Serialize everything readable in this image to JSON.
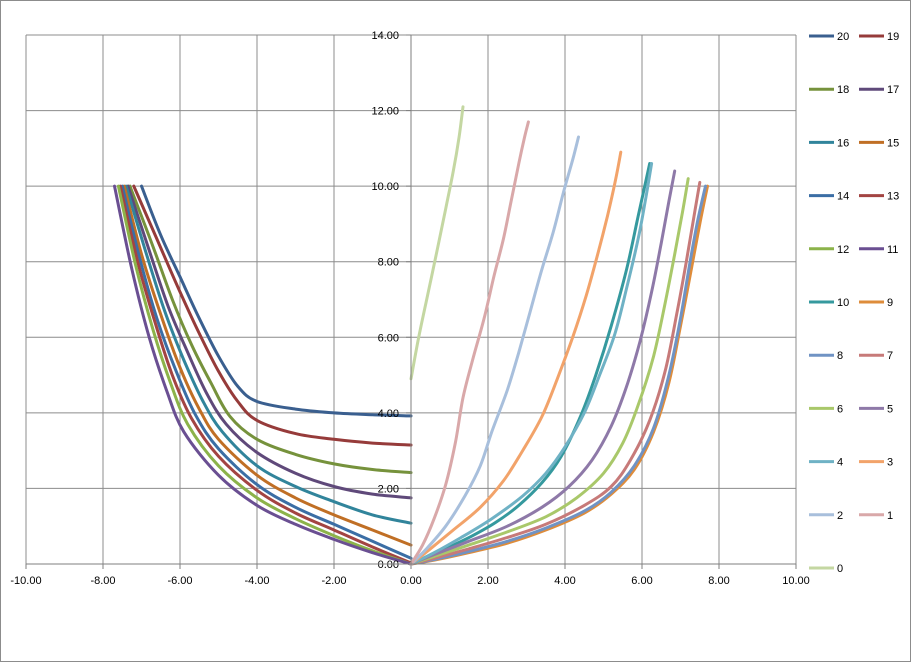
{
  "chart_data": {
    "type": "line",
    "title": "",
    "xlabel": "",
    "ylabel": "",
    "xlim": [
      -10,
      10
    ],
    "ylim": [
      0,
      14
    ],
    "x_ticks": [
      "-10.00",
      "-8.00",
      "-6.00",
      "-4.00",
      "-2.00",
      "0.00",
      "2.00",
      "4.00",
      "6.00",
      "8.00",
      "10.00"
    ],
    "y_ticks": [
      "0.00",
      "2.00",
      "4.00",
      "6.00",
      "8.00",
      "10.00",
      "12.00",
      "14.00"
    ],
    "grid": true,
    "legend_position": "right",
    "series": [
      {
        "name": "20",
        "color": "#3a5f8f",
        "points": [
          [
            -7.0,
            10.0
          ],
          [
            -6.5,
            8.7
          ],
          [
            -6.0,
            7.6
          ],
          [
            -5.5,
            6.5
          ],
          [
            -5.0,
            5.5
          ],
          [
            -4.5,
            4.7
          ],
          [
            -4.0,
            4.3
          ],
          [
            -3.0,
            4.1
          ],
          [
            -2.0,
            4.0
          ],
          [
            -1.0,
            3.95
          ],
          [
            0.0,
            3.92
          ]
        ]
      },
      {
        "name": "19",
        "color": "#963b3a",
        "points": [
          [
            -7.2,
            10.0
          ],
          [
            -6.6,
            8.6
          ],
          [
            -6.0,
            7.2
          ],
          [
            -5.5,
            6.1
          ],
          [
            -5.0,
            5.1
          ],
          [
            -4.5,
            4.3
          ],
          [
            -4.0,
            3.8
          ],
          [
            -3.0,
            3.45
          ],
          [
            -2.0,
            3.3
          ],
          [
            -1.0,
            3.2
          ],
          [
            0.0,
            3.15
          ]
        ]
      },
      {
        "name": "18",
        "color": "#76923c",
        "points": [
          [
            -7.3,
            10.0
          ],
          [
            -6.7,
            8.4
          ],
          [
            -6.2,
            7.0
          ],
          [
            -5.7,
            5.8
          ],
          [
            -5.2,
            4.8
          ],
          [
            -4.7,
            3.9
          ],
          [
            -4.0,
            3.3
          ],
          [
            -3.0,
            2.9
          ],
          [
            -2.0,
            2.65
          ],
          [
            -1.0,
            2.5
          ],
          [
            0.0,
            2.42
          ]
        ]
      },
      {
        "name": "17",
        "color": "#5f497a",
        "points": [
          [
            -7.35,
            10.0
          ],
          [
            -6.8,
            8.3
          ],
          [
            -6.3,
            6.8
          ],
          [
            -5.8,
            5.6
          ],
          [
            -5.3,
            4.5
          ],
          [
            -4.8,
            3.7
          ],
          [
            -4.0,
            2.95
          ],
          [
            -3.0,
            2.4
          ],
          [
            -2.0,
            2.05
          ],
          [
            -1.0,
            1.85
          ],
          [
            0.0,
            1.75
          ]
        ]
      },
      {
        "name": "16",
        "color": "#31849b",
        "points": [
          [
            -7.4,
            10.0
          ],
          [
            -6.9,
            8.3
          ],
          [
            -6.4,
            6.7
          ],
          [
            -5.9,
            5.4
          ],
          [
            -5.4,
            4.3
          ],
          [
            -4.9,
            3.5
          ],
          [
            -4.0,
            2.6
          ],
          [
            -3.0,
            2.05
          ],
          [
            -2.0,
            1.65
          ],
          [
            -1.0,
            1.3
          ],
          [
            0.0,
            1.08
          ]
        ]
      },
      {
        "name": "15",
        "color": "#c06f25",
        "points": [
          [
            -7.45,
            10.0
          ],
          [
            -7.0,
            8.2
          ],
          [
            -6.5,
            6.6
          ],
          [
            -6.0,
            5.2
          ],
          [
            -5.5,
            4.1
          ],
          [
            -5.0,
            3.3
          ],
          [
            -4.0,
            2.35
          ],
          [
            -3.0,
            1.75
          ],
          [
            -2.0,
            1.3
          ],
          [
            -1.0,
            0.9
          ],
          [
            0.0,
            0.5
          ]
        ]
      },
      {
        "name": "14",
        "color": "#3b6ea5",
        "points": [
          [
            -7.5,
            10.0
          ],
          [
            -7.05,
            8.1
          ],
          [
            -6.6,
            6.5
          ],
          [
            -6.1,
            5.1
          ],
          [
            -5.6,
            3.95
          ],
          [
            -5.0,
            3.05
          ],
          [
            -4.0,
            2.1
          ],
          [
            -3.0,
            1.5
          ],
          [
            -2.0,
            1.05
          ],
          [
            -1.0,
            0.6
          ],
          [
            0.0,
            0.15
          ]
        ]
      },
      {
        "name": "13",
        "color": "#a34442",
        "points": [
          [
            -7.55,
            10.0
          ],
          [
            -7.1,
            8.0
          ],
          [
            -6.65,
            6.4
          ],
          [
            -6.2,
            5.0
          ],
          [
            -5.7,
            3.85
          ],
          [
            -5.0,
            2.85
          ],
          [
            -4.0,
            1.95
          ],
          [
            -3.0,
            1.35
          ],
          [
            -2.0,
            0.9
          ],
          [
            -1.0,
            0.45
          ],
          [
            0.0,
            0.03
          ]
        ]
      },
      {
        "name": "12",
        "color": "#8cb34a",
        "points": [
          [
            -7.6,
            10.0
          ],
          [
            -7.15,
            7.9
          ],
          [
            -6.7,
            6.2
          ],
          [
            -6.25,
            4.8
          ],
          [
            -5.8,
            3.7
          ],
          [
            -5.0,
            2.6
          ],
          [
            -4.0,
            1.75
          ],
          [
            -3.0,
            1.2
          ],
          [
            -2.0,
            0.75
          ],
          [
            -1.0,
            0.35
          ],
          [
            0.0,
            0.0
          ]
        ]
      },
      {
        "name": "11",
        "color": "#6a4f92",
        "points": [
          [
            -7.7,
            10.0
          ],
          [
            -7.25,
            7.8
          ],
          [
            -6.8,
            6.0
          ],
          [
            -6.35,
            4.6
          ],
          [
            -5.9,
            3.5
          ],
          [
            -5.0,
            2.35
          ],
          [
            -4.0,
            1.55
          ],
          [
            -3.0,
            1.05
          ],
          [
            -2.0,
            0.65
          ],
          [
            -1.0,
            0.3
          ],
          [
            0.0,
            0.0
          ]
        ]
      },
      {
        "name": "10",
        "color": "#35999e",
        "points": [
          [
            0.0,
            0.0
          ],
          [
            0.4,
            0.15
          ],
          [
            1.0,
            0.45
          ],
          [
            1.6,
            0.75
          ],
          [
            2.2,
            1.1
          ],
          [
            2.8,
            1.55
          ],
          [
            3.4,
            2.15
          ],
          [
            3.9,
            2.85
          ],
          [
            4.4,
            3.9
          ],
          [
            4.8,
            5.0
          ],
          [
            5.2,
            6.3
          ],
          [
            5.6,
            7.8
          ],
          [
            5.9,
            9.2
          ],
          [
            6.2,
            10.6
          ]
        ]
      },
      {
        "name": "9",
        "color": "#de8c3b",
        "points": [
          [
            0.0,
            0.0
          ],
          [
            0.6,
            0.1
          ],
          [
            1.5,
            0.3
          ],
          [
            2.5,
            0.55
          ],
          [
            3.5,
            0.9
          ],
          [
            4.5,
            1.35
          ],
          [
            5.2,
            1.85
          ],
          [
            5.8,
            2.5
          ],
          [
            6.3,
            3.5
          ],
          [
            6.7,
            4.8
          ],
          [
            7.0,
            6.3
          ],
          [
            7.3,
            7.9
          ],
          [
            7.5,
            9.0
          ],
          [
            7.7,
            10.0
          ]
        ]
      },
      {
        "name": "8",
        "color": "#7093c4",
        "points": [
          [
            0.0,
            0.0
          ],
          [
            0.6,
            0.12
          ],
          [
            1.5,
            0.33
          ],
          [
            2.5,
            0.6
          ],
          [
            3.5,
            0.95
          ],
          [
            4.5,
            1.4
          ],
          [
            5.2,
            1.9
          ],
          [
            5.8,
            2.6
          ],
          [
            6.3,
            3.6
          ],
          [
            6.7,
            5.0
          ],
          [
            7.0,
            6.5
          ],
          [
            7.25,
            8.0
          ],
          [
            7.45,
            9.1
          ],
          [
            7.65,
            10.0
          ]
        ]
      },
      {
        "name": "7",
        "color": "#c77a79",
        "points": [
          [
            0.0,
            0.0
          ],
          [
            0.6,
            0.15
          ],
          [
            1.5,
            0.4
          ],
          [
            2.5,
            0.7
          ],
          [
            3.5,
            1.05
          ],
          [
            4.5,
            1.55
          ],
          [
            5.2,
            2.05
          ],
          [
            5.7,
            2.75
          ],
          [
            6.2,
            3.8
          ],
          [
            6.6,
            5.1
          ],
          [
            6.9,
            6.6
          ],
          [
            7.15,
            8.0
          ],
          [
            7.35,
            9.2
          ],
          [
            7.5,
            10.1
          ]
        ]
      },
      {
        "name": "6",
        "color": "#a9c86a",
        "points": [
          [
            0.0,
            0.0
          ],
          [
            0.6,
            0.2
          ],
          [
            1.5,
            0.5
          ],
          [
            2.5,
            0.85
          ],
          [
            3.5,
            1.25
          ],
          [
            4.3,
            1.75
          ],
          [
            5.0,
            2.4
          ],
          [
            5.5,
            3.2
          ],
          [
            5.9,
            4.2
          ],
          [
            6.3,
            5.5
          ],
          [
            6.6,
            6.9
          ],
          [
            6.85,
            8.2
          ],
          [
            7.05,
            9.3
          ],
          [
            7.2,
            10.2
          ]
        ]
      },
      {
        "name": "5",
        "color": "#8e79a8",
        "points": [
          [
            0.0,
            0.0
          ],
          [
            0.6,
            0.25
          ],
          [
            1.5,
            0.6
          ],
          [
            2.5,
            1.0
          ],
          [
            3.4,
            1.5
          ],
          [
            4.1,
            2.05
          ],
          [
            4.7,
            2.75
          ],
          [
            5.2,
            3.65
          ],
          [
            5.6,
            4.7
          ],
          [
            5.95,
            5.9
          ],
          [
            6.25,
            7.2
          ],
          [
            6.5,
            8.5
          ],
          [
            6.7,
            9.6
          ],
          [
            6.85,
            10.4
          ]
        ]
      },
      {
        "name": "4",
        "color": "#6fb2c5",
        "points": [
          [
            0.0,
            0.0
          ],
          [
            0.6,
            0.3
          ],
          [
            1.3,
            0.7
          ],
          [
            2.1,
            1.2
          ],
          [
            2.9,
            1.8
          ],
          [
            3.5,
            2.4
          ],
          [
            4.0,
            3.1
          ],
          [
            4.5,
            4.0
          ],
          [
            4.9,
            5.0
          ],
          [
            5.3,
            6.1
          ],
          [
            5.6,
            7.3
          ],
          [
            5.9,
            8.6
          ],
          [
            6.1,
            9.7
          ],
          [
            6.25,
            10.6
          ]
        ]
      },
      {
        "name": "3",
        "color": "#f2a36a",
        "points": [
          [
            0.0,
            0.0
          ],
          [
            0.5,
            0.4
          ],
          [
            1.1,
            0.9
          ],
          [
            1.8,
            1.5
          ],
          [
            2.4,
            2.2
          ],
          [
            2.9,
            3.0
          ],
          [
            3.4,
            3.9
          ],
          [
            3.8,
            4.9
          ],
          [
            4.2,
            6.0
          ],
          [
            4.55,
            7.1
          ],
          [
            4.85,
            8.2
          ],
          [
            5.1,
            9.2
          ],
          [
            5.3,
            10.1
          ],
          [
            5.45,
            10.9
          ]
        ]
      },
      {
        "name": "2",
        "color": "#a8bfdc",
        "points": [
          [
            0.0,
            0.0
          ],
          [
            0.4,
            0.4
          ],
          [
            0.9,
            1.0
          ],
          [
            1.4,
            1.8
          ],
          [
            1.8,
            2.6
          ],
          [
            2.1,
            3.5
          ],
          [
            2.5,
            4.6
          ],
          [
            2.8,
            5.6
          ],
          [
            3.1,
            6.7
          ],
          [
            3.4,
            7.8
          ],
          [
            3.7,
            8.8
          ],
          [
            3.95,
            9.8
          ],
          [
            4.2,
            10.7
          ],
          [
            4.35,
            11.3
          ]
        ]
      },
      {
        "name": "1",
        "color": "#d9a8a9",
        "points": [
          [
            0.0,
            0.0
          ],
          [
            0.3,
            0.5
          ],
          [
            0.6,
            1.2
          ],
          [
            0.9,
            2.1
          ],
          [
            1.15,
            3.2
          ],
          [
            1.35,
            4.4
          ],
          [
            1.6,
            5.4
          ],
          [
            1.9,
            6.5
          ],
          [
            2.15,
            7.6
          ],
          [
            2.4,
            8.6
          ],
          [
            2.6,
            9.6
          ],
          [
            2.8,
            10.6
          ],
          [
            2.95,
            11.3
          ],
          [
            3.05,
            11.7
          ]
        ]
      },
      {
        "name": "0",
        "color": "#c4d7a2",
        "points": [
          [
            0.0,
            4.9
          ],
          [
            0.2,
            6.0
          ],
          [
            0.45,
            7.2
          ],
          [
            0.7,
            8.4
          ],
          [
            0.9,
            9.4
          ],
          [
            1.1,
            10.4
          ],
          [
            1.25,
            11.3
          ],
          [
            1.35,
            12.1
          ]
        ]
      }
    ]
  }
}
